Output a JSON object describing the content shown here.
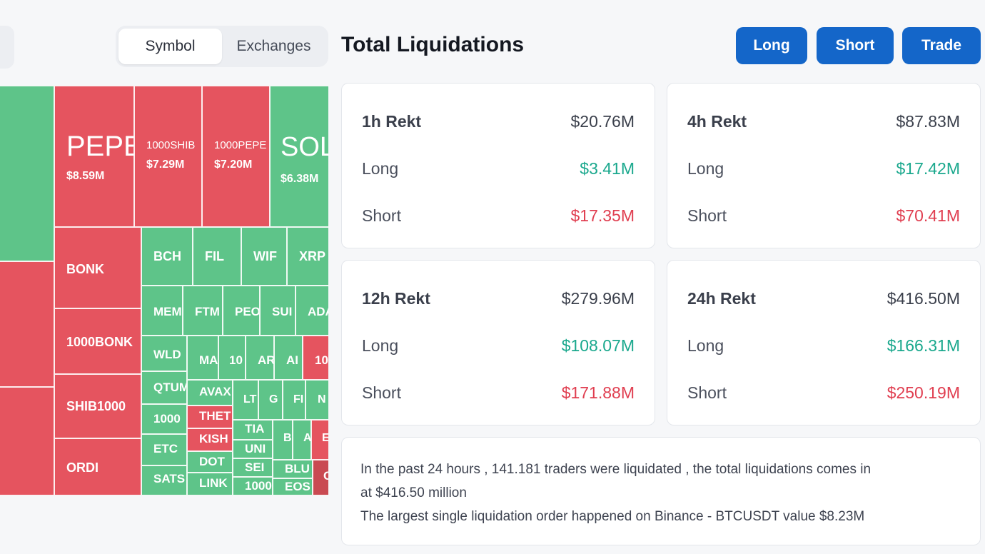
{
  "tabs": {
    "symbol": "Symbol",
    "exchanges": "Exchanges"
  },
  "title": "Total Liquidations",
  "actions": {
    "long": "Long",
    "short": "Short",
    "trade": "Trade"
  },
  "colors": {
    "long": "#5ec489",
    "short": "#e5545f",
    "accent": "#1466c9"
  },
  "treemap": {
    "tiles": [
      {
        "sym": "PEPE",
        "val": "$8.59M"
      },
      {
        "sym": "1000SHIB",
        "val": "$7.29M"
      },
      {
        "sym": "1000PEPE",
        "val": "$7.20M"
      },
      {
        "sym": "SOL",
        "val": "$6.38M"
      },
      {
        "sym": "BONK"
      },
      {
        "sym": "1000BONK"
      },
      {
        "sym": "SHIB1000"
      },
      {
        "sym": "ORDI"
      },
      {
        "sym": "BCH"
      },
      {
        "sym": "FIL"
      },
      {
        "sym": "WIF"
      },
      {
        "sym": "XRP"
      },
      {
        "sym": "MEM"
      },
      {
        "sym": "FTM"
      },
      {
        "sym": "PEO"
      },
      {
        "sym": "SUI"
      },
      {
        "sym": "ADA"
      },
      {
        "sym": "WLD"
      },
      {
        "sym": "MA"
      },
      {
        "sym": "10"
      },
      {
        "sym": "AR"
      },
      {
        "sym": "AI"
      },
      {
        "sym": "10"
      },
      {
        "sym": "QTUM"
      },
      {
        "sym": "AVAX"
      },
      {
        "sym": "LT"
      },
      {
        "sym": "G"
      },
      {
        "sym": "FI"
      },
      {
        "sym": "N"
      },
      {
        "sym": "1000"
      },
      {
        "sym": "THET"
      },
      {
        "sym": "TIA"
      },
      {
        "sym": "B"
      },
      {
        "sym": "A"
      },
      {
        "sym": "E"
      },
      {
        "sym": "ETC"
      },
      {
        "sym": "KISH"
      },
      {
        "sym": "UNI"
      },
      {
        "sym": "DOT"
      },
      {
        "sym": "SEI"
      },
      {
        "sym": "BLU"
      },
      {
        "sym": "C"
      },
      {
        "sym": "SATS"
      },
      {
        "sym": "LINK"
      },
      {
        "sym": "1000"
      },
      {
        "sym": "EOS"
      }
    ]
  },
  "cards": [
    {
      "period": "1h Rekt",
      "total": "$20.76M",
      "long_label": "Long",
      "long": "$3.41M",
      "short_label": "Short",
      "short": "$17.35M"
    },
    {
      "period": "4h Rekt",
      "total": "$87.83M",
      "long_label": "Long",
      "long": "$17.42M",
      "short_label": "Short",
      "short": "$70.41M"
    },
    {
      "period": "12h Rekt",
      "total": "$279.96M",
      "long_label": "Long",
      "long": "$108.07M",
      "short_label": "Short",
      "short": "$171.88M"
    },
    {
      "period": "24h Rekt",
      "total": "$416.50M",
      "long_label": "Long",
      "long": "$166.31M",
      "short_label": "Short",
      "short": "$250.19M"
    }
  ],
  "summary": {
    "line1": "In the past 24 hours , 141.181 traders were liquidated , the total liquidations comes in",
    "line2": "at $416.50 million",
    "line3": "The largest single liquidation order happened on Binance - BTCUSDT value $8.23M"
  }
}
